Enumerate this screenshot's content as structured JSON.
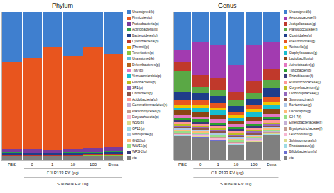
{
  "chart_data": [
    {
      "type": "bar",
      "title": "Phylum",
      "stacked": true,
      "legend": "right",
      "tick_labels": "x",
      "grid": false,
      "categories": [
        "PBS",
        "0",
        "1",
        "10",
        "100",
        "Dexa"
      ],
      "ylim": [
        0,
        100
      ],
      "annotations": [
        "CJLP133 EV (μg)",
        "S.aureus EV 1ug"
      ],
      "series": [
        {
          "name": "Unassigned(k)",
          "color": "#3f7fcf",
          "values": [
            34,
            31,
            23,
            30,
            23,
            28
          ]
        },
        {
          "name": "Firmicutes(p)",
          "color": "#e8551e",
          "values": [
            58,
            61.5,
            69.5,
            62.5,
            68.5,
            62.5
          ]
        },
        {
          "name": "Proteobacteria(p)",
          "color": "#7a3b9e",
          "values": [
            2.5,
            2,
            2,
            2,
            2.5,
            2.5
          ]
        },
        {
          "name": "Actinobacteria(p)",
          "color": "#2e9e4a",
          "values": [
            0.8,
            0.7,
            0.6,
            0.8,
            0.7,
            0.8
          ]
        },
        {
          "name": "Bacteroidetes(p)",
          "color": "#1f3d8a",
          "values": [
            1.2,
            1,
            1,
            1,
            1,
            1.5
          ]
        },
        {
          "name": "Cyanobacteria(p)",
          "color": "#c0392b",
          "values": [
            0.3,
            0.3,
            0.3,
            0.3,
            0.3,
            0.3
          ]
        },
        {
          "name": "[Thermi](p)",
          "color": "#f2a900",
          "values": [
            0.2,
            0.2,
            0.2,
            0.2,
            0.2,
            0.2
          ]
        },
        {
          "name": "Tenericutes(p)",
          "color": "#8cc63f",
          "values": [
            0.2,
            0.2,
            0.2,
            0.2,
            0.2,
            0.2
          ]
        },
        {
          "name": "Unassigned(k)",
          "color": "#5bc0de",
          "values": [
            0.1,
            0.1,
            0.1,
            0.1,
            0.1,
            0.1
          ]
        },
        {
          "name": "Deferribacteres(p)",
          "color": "#b5651d",
          "values": [
            0.1,
            0.1,
            0.1,
            0.1,
            0.1,
            0.1
          ]
        },
        {
          "name": "TM7(p)",
          "color": "#e377c2",
          "values": [
            0.05,
            0.05,
            0.05,
            0.05,
            0.05,
            0.05
          ]
        },
        {
          "name": "Verrucomicrobia(p)",
          "color": "#17becf",
          "values": [
            0.05,
            0.05,
            0.05,
            0.05,
            0.05,
            0.05
          ]
        },
        {
          "name": "Fusobacteria(p)",
          "color": "#bcbd22",
          "values": [
            0,
            0,
            0,
            0,
            0,
            0
          ]
        },
        {
          "name": "SR1(p)",
          "color": "#9467bd",
          "values": [
            0,
            0,
            0,
            0,
            0,
            0
          ]
        },
        {
          "name": "Chloroflexi(p)",
          "color": "#8c564b",
          "values": [
            0,
            0,
            0,
            0,
            0,
            0
          ]
        },
        {
          "name": "Acidobacteria(p)",
          "color": "#ff9896",
          "values": [
            0,
            0,
            0,
            0,
            0,
            0
          ]
        },
        {
          "name": "Gemmatimonadetes(p)",
          "color": "#c5b0d5",
          "values": [
            0,
            0,
            0,
            0,
            0,
            0
          ]
        },
        {
          "name": "Planctomycetes(p)",
          "color": "#c49c94",
          "values": [
            0,
            0,
            0,
            0,
            0,
            0
          ]
        },
        {
          "name": "Euryarchaeota(p)",
          "color": "#f7b6d2",
          "values": [
            0,
            0,
            0,
            0,
            0,
            0
          ]
        },
        {
          "name": "WS6(p)",
          "color": "#dbdb8d",
          "values": [
            0,
            0,
            0,
            0,
            0,
            0
          ]
        },
        {
          "name": "OP11(p)",
          "color": "#9edae5",
          "values": [
            0,
            0,
            0,
            0,
            0,
            0
          ]
        },
        {
          "name": "Nitrospirae(p)",
          "color": "#aec7e8",
          "values": [
            0,
            0,
            0,
            0,
            0,
            0
          ]
        },
        {
          "name": "GN02(p)",
          "color": "#ffbb78",
          "values": [
            0,
            0,
            0,
            0,
            0,
            0
          ]
        },
        {
          "name": "WWE1(p)",
          "color": "#98df8a",
          "values": [
            0,
            0,
            0,
            0,
            0,
            0
          ]
        },
        {
          "name": "WPS-2(p)",
          "color": "#393b79",
          "values": [
            0,
            0,
            0,
            0,
            0,
            0
          ]
        },
        {
          "name": "etc",
          "color": "#7f7f7f",
          "values": [
            2.5,
            2.5,
            2.5,
            2.5,
            3,
            3
          ]
        }
      ]
    },
    {
      "type": "bar",
      "title": "Genus",
      "stacked": true,
      "legend": "right",
      "tick_labels": "x",
      "grid": false,
      "categories": [
        "PBS",
        "0",
        "1",
        "10",
        "100",
        "Dexa"
      ],
      "ylim": [
        0,
        100
      ],
      "annotations": [
        "CJLP133 EV (μg)",
        "S.aureus EV 1ug"
      ],
      "series": [
        {
          "name": "Unassigned(k)",
          "color": "#3f7fcf",
          "values": [
            25,
            20,
            22,
            35,
            22,
            20
          ]
        },
        {
          "name": "Aerococcaceae(f)",
          "color": "#a23bb0",
          "values": [
            8,
            22,
            22,
            18,
            24,
            18
          ]
        },
        {
          "name": "Jeotgalicoccus(g)",
          "color": "#c0392b",
          "values": [
            6,
            8,
            8,
            6,
            8,
            7
          ]
        },
        {
          "name": "Planococcaceae(f)",
          "color": "#5aa845",
          "values": [
            14,
            4,
            4,
            4,
            4,
            6
          ]
        },
        {
          "name": "Clostridiales(o)",
          "color": "#1f3d8a",
          "values": [
            6,
            5,
            5,
            4,
            4,
            6
          ]
        },
        {
          "name": "Pseudomonas(g)",
          "color": "#e8551e",
          "values": [
            3,
            3,
            3,
            2,
            3,
            3
          ]
        },
        {
          "name": "Weissella(g)",
          "color": "#f2c500",
          "values": [
            2,
            2,
            2,
            2,
            2,
            2
          ]
        },
        {
          "name": "Staphylococcus(g)",
          "color": "#17becf",
          "values": [
            2,
            3,
            3,
            2,
            3,
            3
          ]
        },
        {
          "name": "Lactobacillus(g)",
          "color": "#8b4513",
          "values": [
            3,
            3,
            3,
            2,
            3,
            3
          ]
        },
        {
          "name": "Acinetobacter(g)",
          "color": "#e377c2",
          "values": [
            2,
            2,
            2,
            2,
            2,
            2
          ]
        },
        {
          "name": "Turicibacter(g)",
          "color": "#2ca02c",
          "values": [
            1.5,
            1.5,
            1.5,
            1.5,
            1.5,
            1.5
          ]
        },
        {
          "name": "Rhizobiaceae(f)",
          "color": "#393b79",
          "values": [
            1,
            1,
            1,
            1,
            1,
            1
          ]
        },
        {
          "name": "Ruminococcaceae(f)",
          "color": "#ff9896",
          "values": [
            1.5,
            1.5,
            1.5,
            1.5,
            1.5,
            1.5
          ]
        },
        {
          "name": "Corynebacterium(g)",
          "color": "#bcbd22",
          "values": [
            1,
            1,
            1,
            1,
            1,
            1
          ]
        },
        {
          "name": "Lachnospiraceae(f)",
          "color": "#9467bd",
          "values": [
            1,
            1,
            1,
            1,
            1,
            1
          ]
        },
        {
          "name": "Sporosarcina(g)",
          "color": "#8c564b",
          "values": [
            1,
            1,
            1,
            1,
            1,
            1
          ]
        },
        {
          "name": "Bacteroides(g)",
          "color": "#aec7e8",
          "values": [
            1,
            1,
            1,
            1,
            1,
            1
          ]
        },
        {
          "name": "Oscillospira(g)",
          "color": "#ffbb78",
          "values": [
            0.8,
            0.8,
            0.8,
            0.8,
            0.8,
            0.8
          ]
        },
        {
          "name": "S24-7(f)",
          "color": "#98df8a",
          "values": [
            0.8,
            0.8,
            0.8,
            0.8,
            0.8,
            0.8
          ]
        },
        {
          "name": "Enterobacteriaceae(f)",
          "color": "#c5b0d5",
          "values": [
            0.6,
            0.6,
            0.6,
            0.6,
            0.6,
            0.6
          ]
        },
        {
          "name": "Erysipelotrichaceae(f)",
          "color": "#c49c94",
          "values": [
            0.5,
            0.5,
            0.5,
            0.5,
            0.5,
            0.5
          ]
        },
        {
          "name": "Leuconostoc(g)",
          "color": "#f7b6d2",
          "values": [
            0.5,
            0.5,
            0.5,
            0.5,
            0.5,
            0.5
          ]
        },
        {
          "name": "Sphingomonas(g)",
          "color": "#dbdb8d",
          "values": [
            0.4,
            0.4,
            0.4,
            0.4,
            0.4,
            0.4
          ]
        },
        {
          "name": "Rhodococcus(g)",
          "color": "#9edae5",
          "values": [
            0.4,
            0.4,
            0.4,
            0.4,
            0.4,
            0.4
          ]
        },
        {
          "name": "Bifidobacterium(g)",
          "color": "#6b6ecf",
          "values": [
            0.3,
            0.3,
            0.3,
            0.3,
            0.3,
            0.3
          ]
        },
        {
          "name": "etc",
          "color": "#7f7f7f",
          "values": [
            16,
            15,
            13,
            10,
            12,
            17
          ]
        }
      ]
    }
  ]
}
